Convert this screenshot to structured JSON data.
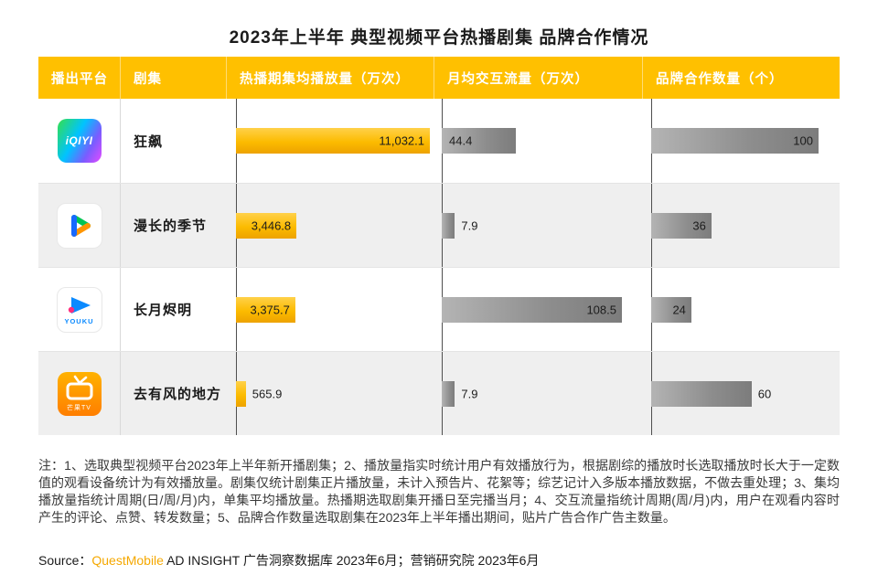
{
  "title": "2023年上半年 典型视频平台热播剧集 品牌合作情况",
  "table": {
    "headers": [
      "播出平台",
      "剧集",
      "热播期集均播放量（万次）",
      "月均交互流量（万次）",
      "品牌合作数量（个）"
    ],
    "rows": [
      {
        "platform": "爱奇艺",
        "logo_text": "iQIYI",
        "drama": "狂飙",
        "bars": {
          "play": {
            "value": 11032.1,
            "label": "11,032.1",
            "pct": 100,
            "pos": "in-right"
          },
          "interact": {
            "value": 44.4,
            "label": "44.4",
            "pct": 40.9,
            "pos": "in-left"
          },
          "brand": {
            "value": 100,
            "label": "100",
            "pct": 100,
            "pos": "in-right"
          }
        }
      },
      {
        "platform": "腾讯视频",
        "logo_text": "",
        "drama": "漫长的季节",
        "bars": {
          "play": {
            "value": 3446.8,
            "label": "3,446.8",
            "pct": 31.2,
            "pos": "in-right"
          },
          "interact": {
            "value": 7.9,
            "label": "7.9",
            "pct": 7.3,
            "pos": "out"
          },
          "brand": {
            "value": 36,
            "label": "36",
            "pct": 36,
            "pos": "in-right"
          }
        }
      },
      {
        "platform": "优酷",
        "logo_text": "YOUKU",
        "drama": "长月烬明",
        "bars": {
          "play": {
            "value": 3375.7,
            "label": "3,375.7",
            "pct": 30.6,
            "pos": "in-right"
          },
          "interact": {
            "value": 108.5,
            "label": "108.5",
            "pct": 100,
            "pos": "in-right"
          },
          "brand": {
            "value": 24,
            "label": "24",
            "pct": 24,
            "pos": "in-right"
          }
        }
      },
      {
        "platform": "芒果TV",
        "logo_text": "芒果TV",
        "drama": "去有风的地方",
        "bars": {
          "play": {
            "value": 565.9,
            "label": "565.9",
            "pct": 5.1,
            "pos": "out"
          },
          "interact": {
            "value": 7.9,
            "label": "7.9",
            "pct": 7.3,
            "pos": "out"
          },
          "brand": {
            "value": 60,
            "label": "60",
            "pct": 60,
            "pos": "out"
          }
        }
      }
    ]
  },
  "chart_data": {
    "type": "bar",
    "orientation": "horizontal",
    "title": "2023年上半年 典型视频平台热播剧集 品牌合作情况",
    "categories": [
      "狂飙（爱奇艺）",
      "漫长的季节（腾讯视频）",
      "长月烬明（优酷）",
      "去有风的地方（芒果TV）"
    ],
    "series": [
      {
        "name": "热播期集均播放量（万次）",
        "values": [
          11032.1,
          3446.8,
          3375.7,
          565.9
        ],
        "scale_max": 11032.1,
        "color": "#FFC000"
      },
      {
        "name": "月均交互流量（万次）",
        "values": [
          44.4,
          7.9,
          108.5,
          7.9
        ],
        "scale_max": 108.5,
        "color": "#8d8d8d"
      },
      {
        "name": "品牌合作数量（个）",
        "values": [
          100,
          36,
          24,
          60
        ],
        "scale_max": 100,
        "color": "#8d8d8d"
      }
    ],
    "legend_position": "none",
    "grid": false
  },
  "notes": "注：1、选取典型视频平台2023年上半年新开播剧集；2、播放量指实时统计用户有效播放行为，根据剧综的播放时长选取播放时长大于一定数值的观看设备统计为有效播放量。剧集仅统计剧集正片播放量，未计入预告片、花絮等；综艺记计入多版本播放数据，不做去重处理；3、集均播放量指统计周期(日/周/月)内，单集平均播放量。热播期选取剧集开播日至完播当月；4、交互流量指统计周期(周/月)内，用户在观看内容时产生的评论、点赞、转发数量；5、品牌合作数量选取剧集在2023年上半年播出期间，贴片广告合作广告主数量。",
  "source": {
    "prefix": "Source：",
    "brand": "QuestMobile",
    "rest": " AD INSIGHT 广告洞察数据库 2023年6月；营销研究院 2023年6月"
  },
  "colors": {
    "header_bg": "#FFC000",
    "bar_yellow": "#FFC000",
    "bar_gray": "#8d8d8d",
    "row_alt_bg": "#efefef",
    "brand_orange": "#f5a800"
  }
}
